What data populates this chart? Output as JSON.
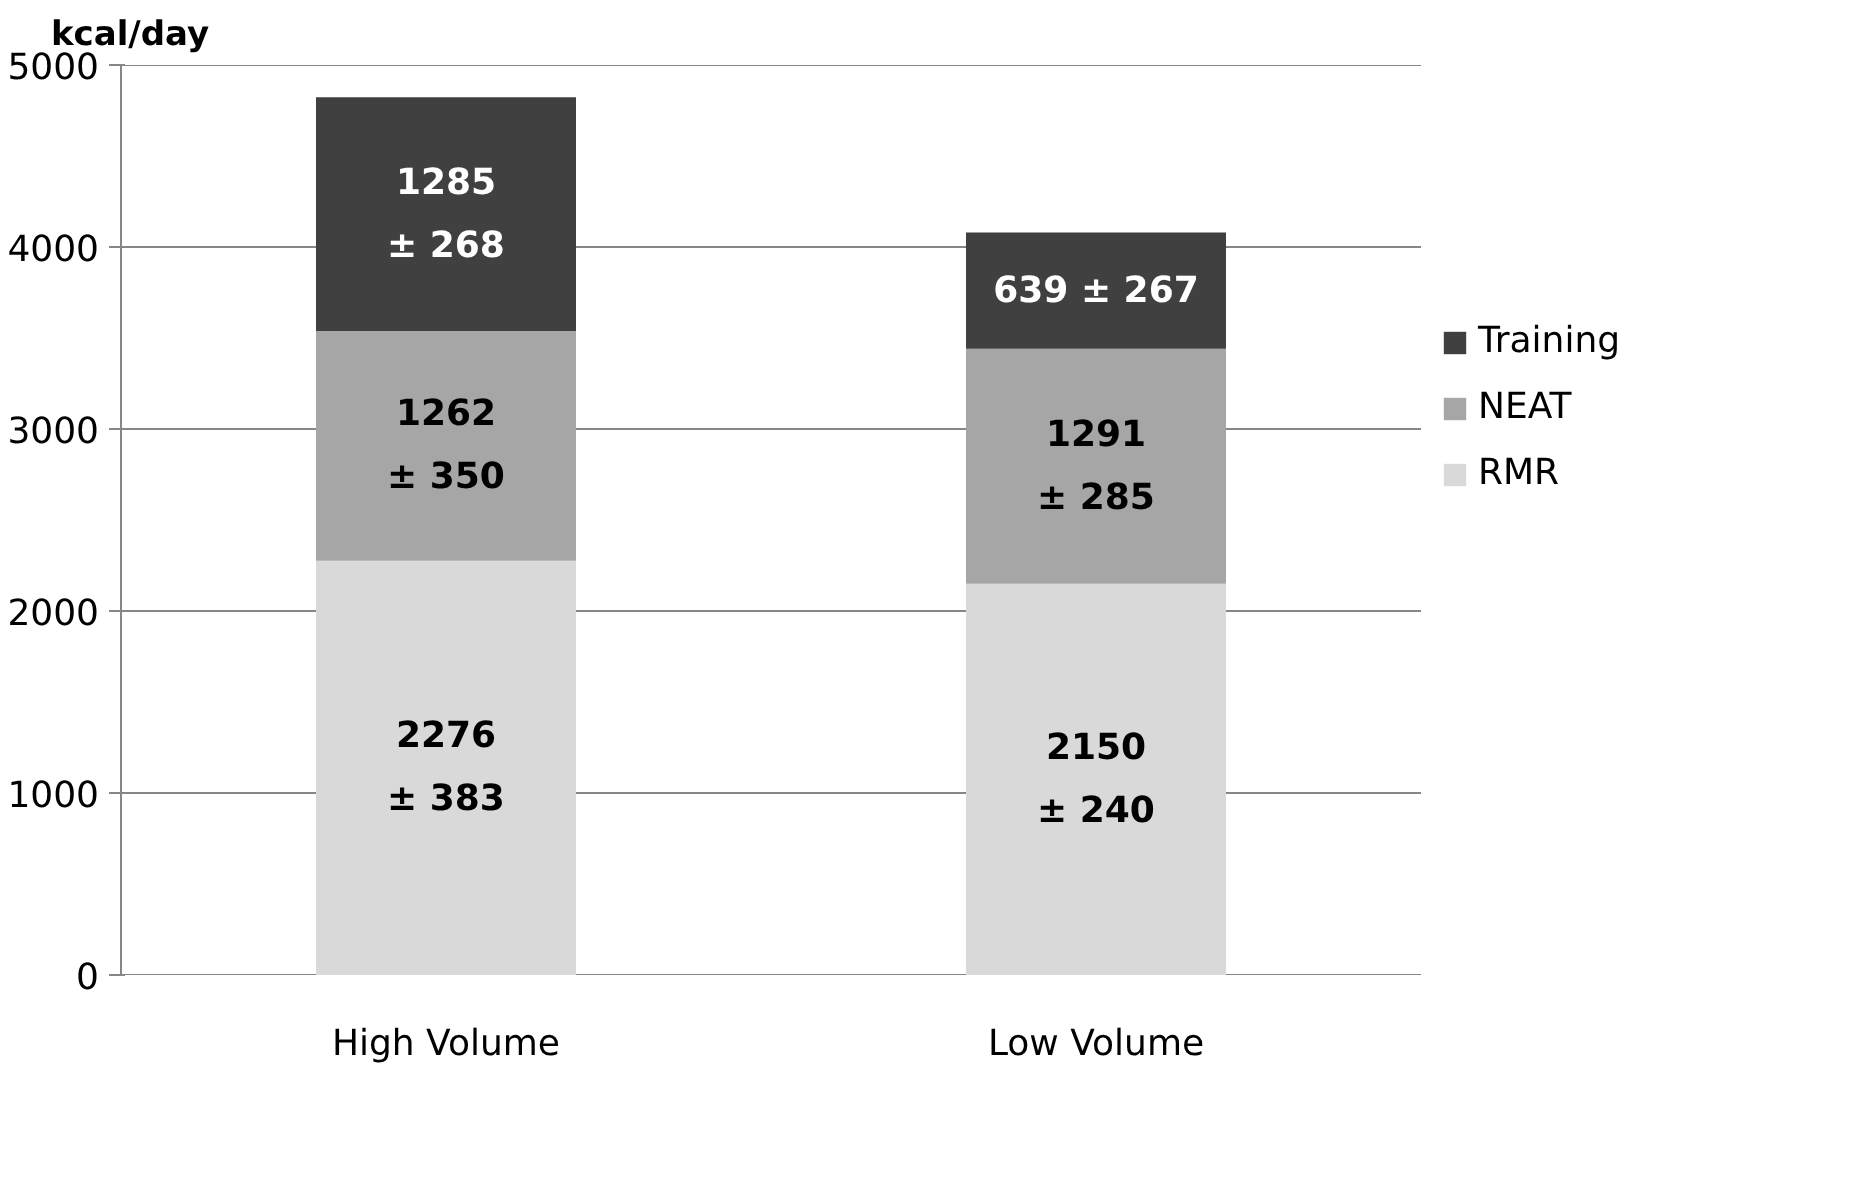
{
  "chart_data": {
    "type": "bar",
    "stacked": true,
    "ylabel": "kcal/day",
    "categories": [
      "High Volume",
      "Low Volume"
    ],
    "series": [
      {
        "name": "RMR",
        "color": "#d9d9d9",
        "values": [
          2276,
          2150
        ],
        "value_labels": [
          "2276\n± 383",
          "2150\n± 240"
        ]
      },
      {
        "name": "NEAT",
        "color": "#a6a6a6",
        "values": [
          1262,
          1291
        ],
        "value_labels": [
          "1262\n± 350",
          "1291\n± 285"
        ]
      },
      {
        "name": "Training",
        "color": "#404040",
        "values": [
          1285,
          639
        ],
        "value_labels": [
          "1285\n± 268",
          "639 ± 267"
        ]
      }
    ],
    "ylim": [
      0,
      5000
    ],
    "yticks": [
      0,
      1000,
      2000,
      3000,
      4000,
      5000
    ],
    "grid": "y",
    "legend": "right"
  }
}
